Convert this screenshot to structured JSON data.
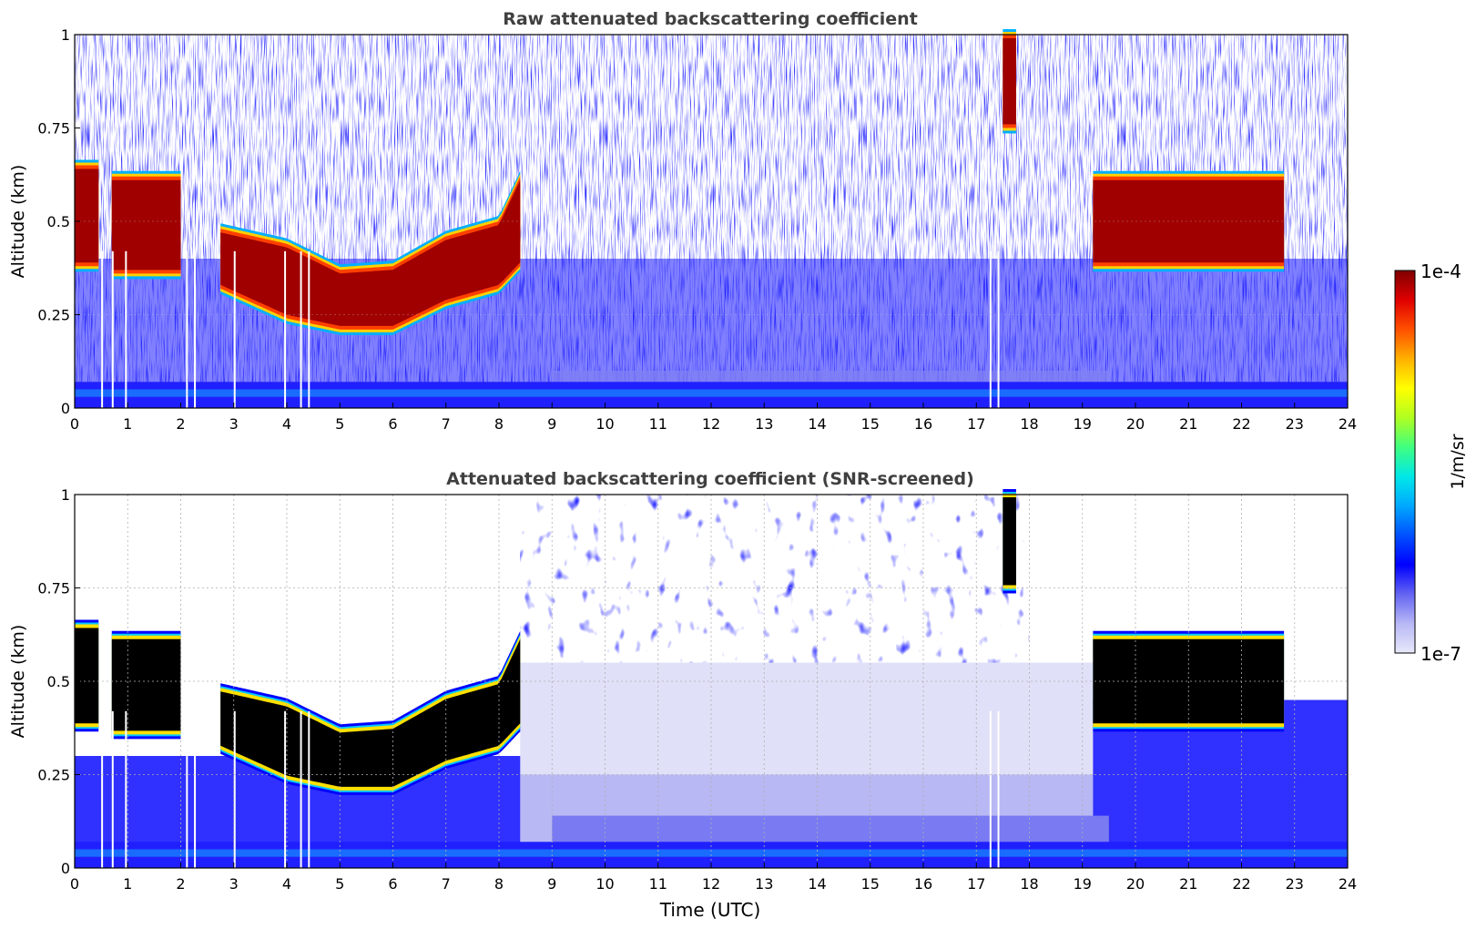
{
  "figure": {
    "colorbar": {
      "label": "1/m/sr",
      "max_label": "1e-4",
      "min_label": "1e-7",
      "scale": "log",
      "range": [
        1e-07,
        0.0001
      ],
      "colormap": [
        "#e8e8fa",
        "#b8b8f6",
        "#6464f2",
        "#0000ff",
        "#0050ff",
        "#00a8ff",
        "#00e8e8",
        "#40ff80",
        "#b0ff20",
        "#ffff00",
        "#ffb000",
        "#ff5000",
        "#e00000",
        "#7f0000"
      ]
    },
    "xlabel": "Time (UTC)"
  },
  "chart_data": [
    {
      "type": "heatmap",
      "title": "Raw attenuated backscattering coefficient",
      "xlabel": "",
      "ylabel": "Altitude (km)",
      "xlim": [
        0,
        24
      ],
      "ylim": [
        0,
        1
      ],
      "xticks": [
        "0",
        "1",
        "2",
        "3",
        "4",
        "5",
        "6",
        "7",
        "8",
        "9",
        "10",
        "11",
        "12",
        "13",
        "14",
        "15",
        "16",
        "17",
        "18",
        "19",
        "20",
        "21",
        "22",
        "23",
        "24"
      ],
      "yticks": [
        "0",
        "0.25",
        "0.5",
        "0.75",
        "1"
      ],
      "grid": false,
      "cloud_layers": [
        {
          "x": [
            0.0,
            0.45
          ],
          "base": 0.38,
          "top": 0.65
        },
        {
          "x": [
            0.7,
            2.0
          ],
          "base": 0.36,
          "top": 0.62
        },
        {
          "x": [
            2.75,
            8.4
          ],
          "base_track": [
            [
              2.75,
              0.32
            ],
            [
              4,
              0.24
            ],
            [
              5,
              0.21
            ],
            [
              6,
              0.21
            ],
            [
              7,
              0.28
            ],
            [
              8,
              0.32
            ],
            [
              8.4,
              0.38
            ]
          ],
          "top_track": [
            [
              2.75,
              0.48
            ],
            [
              4,
              0.44
            ],
            [
              5,
              0.37
            ],
            [
              6,
              0.38
            ],
            [
              7,
              0.46
            ],
            [
              8,
              0.5
            ],
            [
              8.4,
              0.62
            ]
          ]
        },
        {
          "x": [
            17.5,
            17.75
          ],
          "base": 0.75,
          "top": 1.0
        },
        {
          "x": [
            19.2,
            22.8
          ],
          "base": 0.38,
          "top": 0.62
        }
      ],
      "data_gaps_hours": [
        0.5,
        0.7,
        0.95,
        2.1,
        2.25,
        3.0,
        3.95,
        4.25,
        4.4,
        17.25,
        17.4
      ]
    },
    {
      "type": "heatmap",
      "title": "Attenuated backscattering coefficient (SNR-screened)",
      "xlabel": "Time (UTC)",
      "ylabel": "Altitude (km)",
      "xlim": [
        0,
        24
      ],
      "ylim": [
        0,
        1
      ],
      "xticks": [
        "0",
        "1",
        "2",
        "3",
        "4",
        "5",
        "6",
        "7",
        "8",
        "9",
        "10",
        "11",
        "12",
        "13",
        "14",
        "15",
        "16",
        "17",
        "18",
        "19",
        "20",
        "21",
        "22",
        "23",
        "24"
      ],
      "yticks": [
        "0",
        "0.25",
        "0.5",
        "0.75",
        "1"
      ],
      "grid": true,
      "saturated_color": "#000000",
      "cloud_layers": [
        {
          "x": [
            0.0,
            0.45
          ],
          "base": 0.38,
          "top": 0.65
        },
        {
          "x": [
            0.7,
            2.0
          ],
          "base": 0.36,
          "top": 0.62
        },
        {
          "x": [
            2.75,
            8.4
          ],
          "base_track": [
            [
              2.75,
              0.32
            ],
            [
              4,
              0.24
            ],
            [
              5,
              0.21
            ],
            [
              6,
              0.21
            ],
            [
              7,
              0.28
            ],
            [
              8,
              0.32
            ],
            [
              8.4,
              0.38
            ]
          ],
          "top_track": [
            [
              2.75,
              0.48
            ],
            [
              4,
              0.44
            ],
            [
              5,
              0.37
            ],
            [
              6,
              0.38
            ],
            [
              7,
              0.46
            ],
            [
              8,
              0.5
            ],
            [
              8.4,
              0.62
            ]
          ]
        },
        {
          "x": [
            17.5,
            17.75
          ],
          "base": 0.75,
          "top": 1.0
        },
        {
          "x": [
            19.2,
            22.8
          ],
          "base": 0.38,
          "top": 0.62
        }
      ],
      "data_gaps_hours": [
        0.5,
        0.7,
        0.95,
        2.1,
        2.25,
        3.0,
        3.95,
        4.25,
        4.4,
        17.25,
        17.4
      ]
    }
  ]
}
